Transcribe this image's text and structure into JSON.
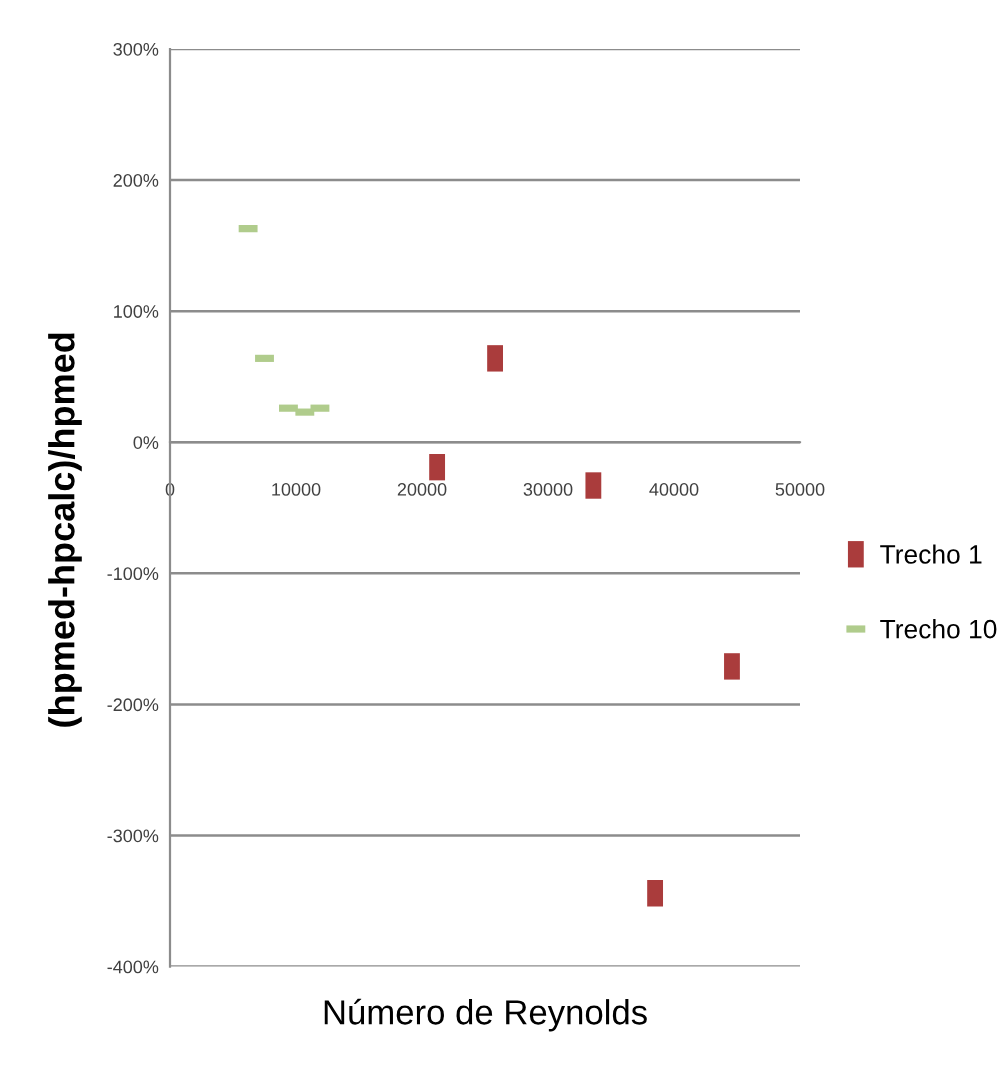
{
  "chart_data": {
    "type": "scatter",
    "xlabel": "Número de Reynolds",
    "ylabel": "(hpmed-hpcalc)/hpmed",
    "xlim": [
      0,
      50000
    ],
    "xticks": [
      0,
      10000,
      20000,
      30000,
      40000,
      50000
    ],
    "ylim": [
      -400,
      300
    ],
    "yticks": [
      {
        "value": -400,
        "label": "-400%"
      },
      {
        "value": -300,
        "label": "-300%"
      },
      {
        "value": -200,
        "label": "-200%"
      },
      {
        "value": -100,
        "label": "-100%"
      },
      {
        "value": 0,
        "label": "0%"
      },
      {
        "value": 100,
        "label": "100%"
      },
      {
        "value": 200,
        "label": "200%"
      },
      {
        "value": 300,
        "label": "300%"
      }
    ],
    "grid": "y",
    "legend": "right",
    "series": [
      {
        "name": "Trecho 1",
        "color": "#aa3c3c",
        "marker": "square",
        "x": [
          21200,
          25800,
          33600,
          38500,
          44600
        ],
        "values": [
          -19,
          64,
          -33,
          -344,
          -171
        ]
      },
      {
        "name": "Trecho 10",
        "color": "#b0cc8c",
        "x": [
          6200,
          7500,
          9400,
          10700,
          11900
        ],
        "values": [
          163,
          64,
          26,
          23,
          26
        ]
      }
    ]
  }
}
